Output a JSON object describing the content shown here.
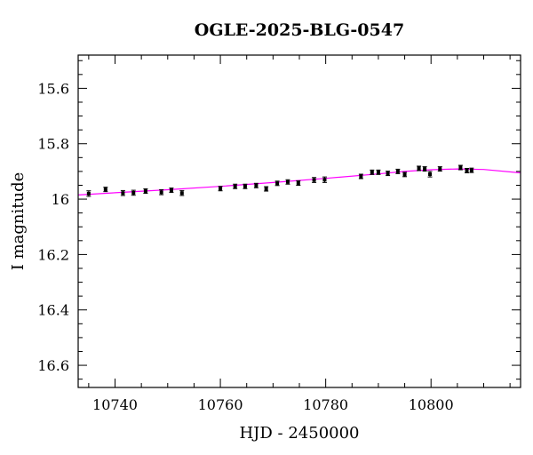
{
  "chart_data": {
    "type": "scatter",
    "title": "OGLE-2025-BLG-0547",
    "xlabel": "HJD - 2450000",
    "ylabel": "I magnitude",
    "xlim": [
      10733,
      10817
    ],
    "ylim": [
      15.48,
      16.68
    ],
    "y_inverted": true,
    "grid": false,
    "x_ticks": [
      10740,
      10760,
      10780,
      10800
    ],
    "x_tick_labels": [
      "10740",
      "10760",
      "10780",
      "10800"
    ],
    "y_ticks": [
      15.6,
      15.8,
      16,
      16.2,
      16.4,
      16.6
    ],
    "y_tick_labels": [
      "15.6",
      "15.8",
      "16",
      "16.2",
      "16.4",
      "16.6"
    ],
    "colors": {
      "data": "#000000",
      "model": "#ff00ff",
      "axes": "#000000"
    },
    "series": [
      {
        "type": "scatter",
        "points": [
          {
            "x": 10735.0,
            "y": 15.98,
            "err": 0.01
          },
          {
            "x": 10738.2,
            "y": 15.965,
            "err": 0.008
          },
          {
            "x": 10741.5,
            "y": 15.978,
            "err": 0.009
          },
          {
            "x": 10743.5,
            "y": 15.977,
            "err": 0.009
          },
          {
            "x": 10745.8,
            "y": 15.971,
            "err": 0.008
          },
          {
            "x": 10748.8,
            "y": 15.975,
            "err": 0.009
          },
          {
            "x": 10750.7,
            "y": 15.968,
            "err": 0.008
          },
          {
            "x": 10752.7,
            "y": 15.978,
            "err": 0.009
          },
          {
            "x": 10760.0,
            "y": 15.962,
            "err": 0.008
          },
          {
            "x": 10762.8,
            "y": 15.954,
            "err": 0.008
          },
          {
            "x": 10764.7,
            "y": 15.954,
            "err": 0.008
          },
          {
            "x": 10766.8,
            "y": 15.951,
            "err": 0.008
          },
          {
            "x": 10768.7,
            "y": 15.963,
            "err": 0.008
          },
          {
            "x": 10770.8,
            "y": 15.943,
            "err": 0.008
          },
          {
            "x": 10772.8,
            "y": 15.938,
            "err": 0.008
          },
          {
            "x": 10774.8,
            "y": 15.942,
            "err": 0.008
          },
          {
            "x": 10777.8,
            "y": 15.931,
            "err": 0.009
          },
          {
            "x": 10779.8,
            "y": 15.93,
            "err": 0.01
          },
          {
            "x": 10786.7,
            "y": 15.918,
            "err": 0.008
          },
          {
            "x": 10788.8,
            "y": 15.903,
            "err": 0.008
          },
          {
            "x": 10790.0,
            "y": 15.903,
            "err": 0.008
          },
          {
            "x": 10791.8,
            "y": 15.907,
            "err": 0.008
          },
          {
            "x": 10793.7,
            "y": 15.9,
            "err": 0.008
          },
          {
            "x": 10795.0,
            "y": 15.911,
            "err": 0.008
          },
          {
            "x": 10797.7,
            "y": 15.889,
            "err": 0.008
          },
          {
            "x": 10798.8,
            "y": 15.891,
            "err": 0.008
          },
          {
            "x": 10799.8,
            "y": 15.91,
            "err": 0.01
          },
          {
            "x": 10801.7,
            "y": 15.891,
            "err": 0.008
          },
          {
            "x": 10805.6,
            "y": 15.886,
            "err": 0.008
          },
          {
            "x": 10806.8,
            "y": 15.897,
            "err": 0.008
          },
          {
            "x": 10807.7,
            "y": 15.896,
            "err": 0.008
          }
        ]
      },
      {
        "type": "line",
        "x": [
          10733,
          10740,
          10750,
          10760,
          10770,
          10780,
          10790,
          10795,
          10800,
          10805,
          10810,
          10817
        ],
        "y": [
          15.985,
          15.977,
          15.966,
          15.954,
          15.94,
          15.925,
          15.909,
          15.9,
          15.894,
          15.891,
          15.893,
          15.905
        ]
      }
    ]
  }
}
